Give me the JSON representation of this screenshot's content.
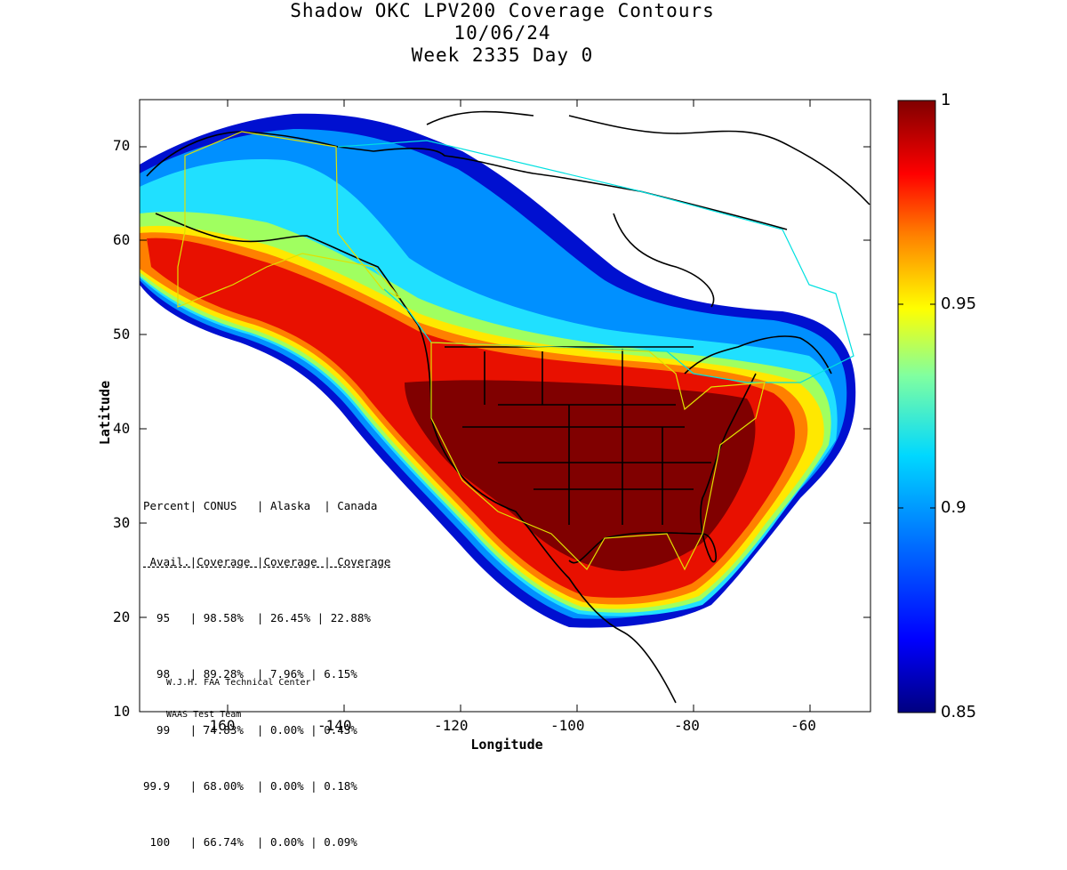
{
  "title": {
    "line1": "Shadow OKC LPV200 Coverage Contours",
    "line2": "10/06/24",
    "line3": "Week 2335 Day 0"
  },
  "axes": {
    "xlabel": "Longitude",
    "ylabel": "Latitude",
    "xlim": [
      -175,
      -50
    ],
    "ylim": [
      10,
      75
    ],
    "xticks": [
      "-160",
      "-140",
      "-120",
      "-100",
      "-80",
      "-60"
    ],
    "yticks": [
      "70",
      "60",
      "50",
      "40",
      "30",
      "20",
      "10"
    ]
  },
  "colorbar": {
    "range": [
      0.85,
      1
    ],
    "ticks": [
      "1",
      "0.95",
      "0.9",
      "0.85"
    ]
  },
  "stats": {
    "header1": "Percent| CONUS   | Alaska  | Canada",
    "header2": " Avail.|Coverage |Coverage | Coverage",
    "rows": [
      "  95   | 98.58%  | 26.45% | 22.88%",
      "  98   | 89.28%  | 7.96% | 6.15%",
      "  99   | 74.83%  | 0.00% | 0.43%",
      "99.9   | 68.00%  | 0.00% | 0.18%",
      " 100   | 66.74%  | 0.00% | 0.09%"
    ]
  },
  "credit": {
    "line1": "W.J.H. FAA Technical Center",
    "line2": "WAAS Test Team"
  },
  "colors": {
    "coverage_100": "#800000",
    "coverage_high": "#e01000",
    "coverage_mid": "#ffe000",
    "coverage_low": "#00c8ff",
    "coverage_min": "#000090",
    "boundary_conus": "#e0e000",
    "boundary_canada": "#00e0e0"
  }
}
